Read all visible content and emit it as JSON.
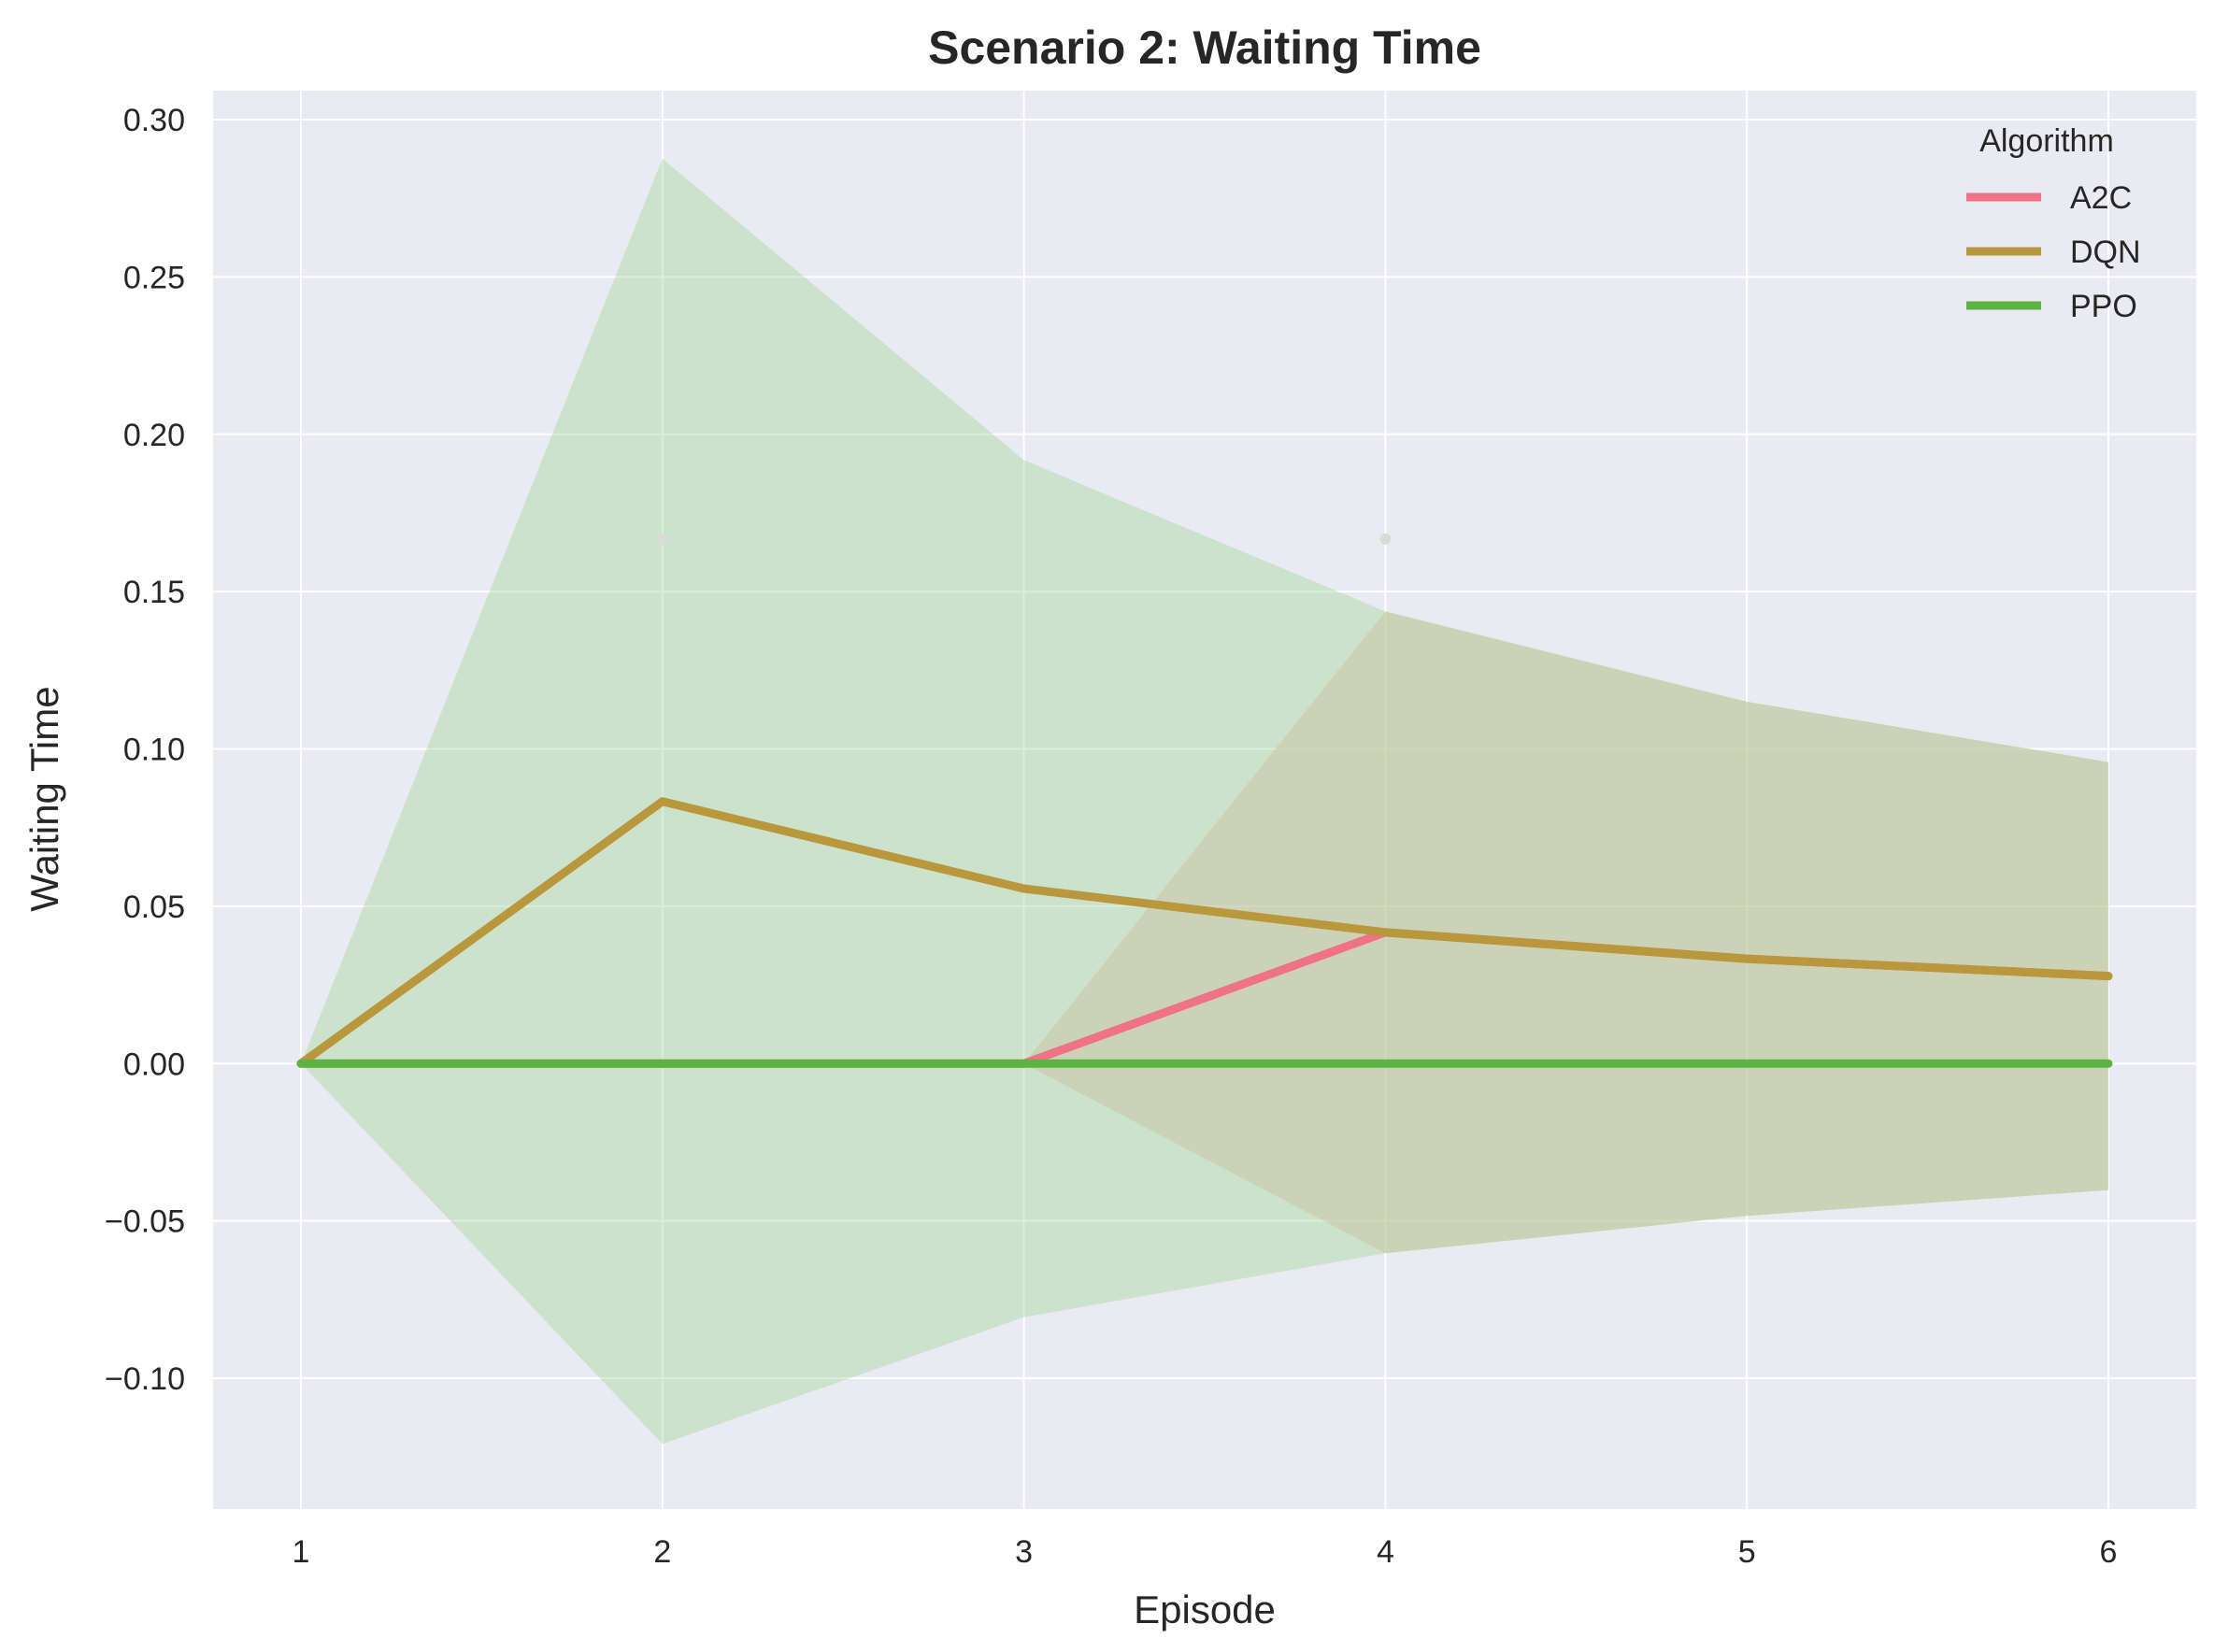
{
  "chart_data": {
    "type": "line",
    "title": "Scenario 2: Waiting Time",
    "xlabel": "Episode",
    "ylabel": "Waiting Time",
    "x": [
      1,
      2,
      3,
      4,
      5,
      6
    ],
    "x_ticks": [
      "1",
      "2",
      "3",
      "4",
      "5",
      "6"
    ],
    "y_ticks": [
      "0.30",
      "0.25",
      "0.20",
      "0.15",
      "0.10",
      "0.05",
      "0.00",
      "−0.05",
      "−0.10"
    ],
    "xlim": [
      0.75,
      6.25
    ],
    "ylim": [
      -0.1415,
      0.308
    ],
    "grid": true,
    "legend": {
      "title": "Algorithm",
      "placement": "top-right"
    },
    "series": [
      {
        "name": "A2C",
        "color": "#f07286",
        "values": [
          0,
          0,
          0,
          0.0417,
          0.0333,
          0.0278
        ],
        "band_upper": [
          0,
          0,
          0,
          0.1437,
          0.115,
          0.0958
        ],
        "band_lower": [
          0,
          0,
          0,
          -0.0603,
          -0.0484,
          -0.0402
        ],
        "band_color": "#c7bd94"
      },
      {
        "name": "DQN",
        "color": "#b8973d",
        "values": [
          0,
          0.0833,
          0.0556,
          0.0417,
          0.0333,
          0.0278
        ]
      },
      {
        "name": "PPO",
        "color": "#5cb342",
        "values": [
          0,
          0,
          0,
          0,
          0,
          0
        ],
        "band_upper": [
          0,
          0.2876,
          0.1918,
          0.1437,
          0.115,
          0.0958
        ],
        "band_lower": [
          0,
          -0.1209,
          -0.0806,
          -0.0603,
          -0.0484,
          -0.0402
        ],
        "band_color": "#a4d69a"
      }
    ],
    "scatter_points": [
      {
        "x": 2,
        "y": 0.1667
      },
      {
        "x": 4,
        "y": 0.1667
      }
    ]
  }
}
